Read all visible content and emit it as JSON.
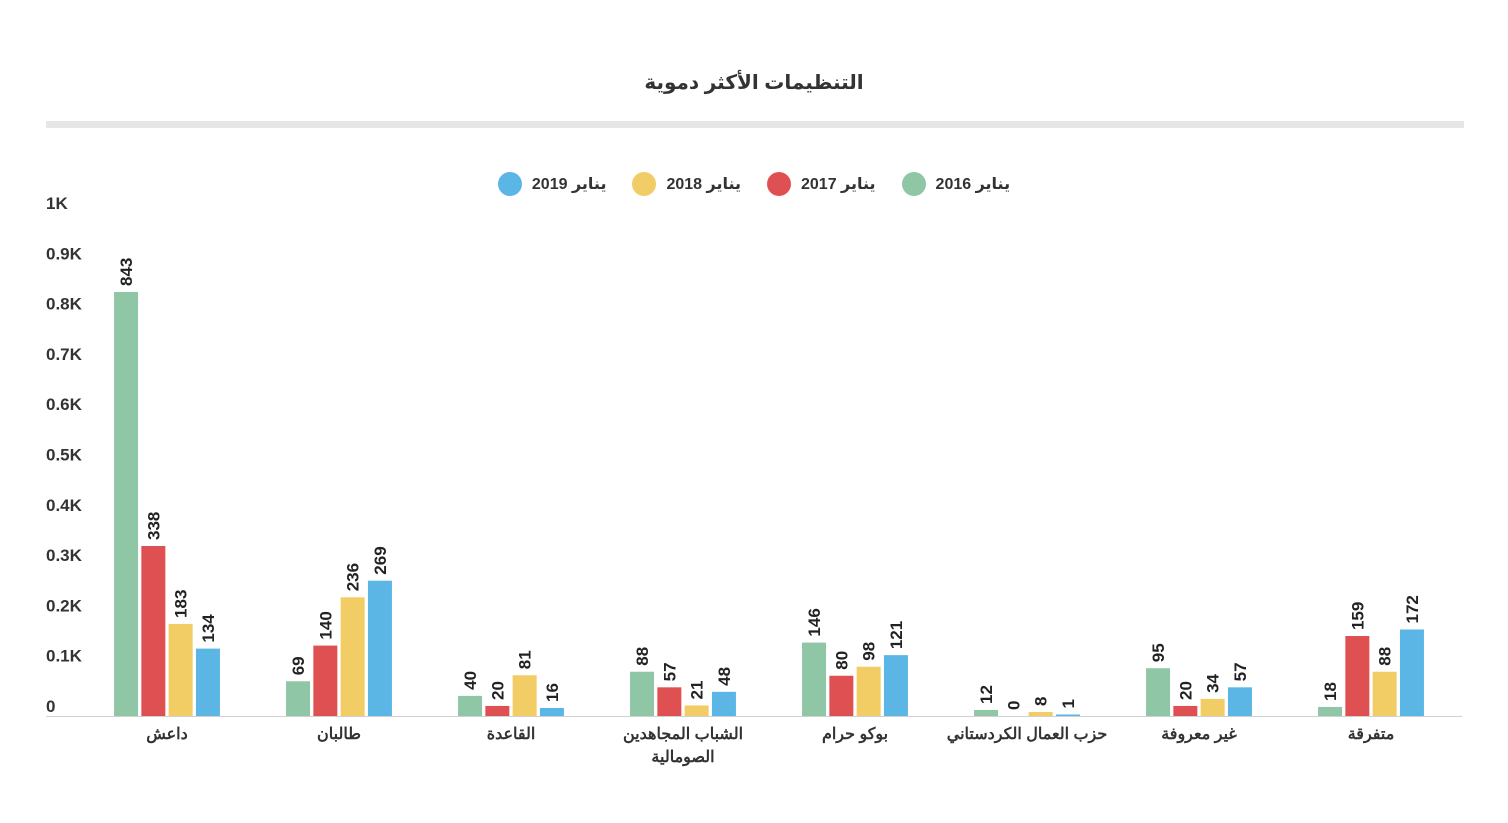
{
  "chart_data": {
    "type": "bar",
    "title": "التنظيمات الأكثر دموية",
    "categories": [
      "داعش",
      "طالبان",
      "القاعدة",
      "الشباب المجاهدين|الصومالية",
      "بوكو حرام",
      "حزب العمال الكردستاني",
      "غير معروفة",
      "متفرقة"
    ],
    "series": [
      {
        "name": "يناير 2016",
        "color": "#8fc6a5",
        "values": [
          843,
          69,
          40,
          88,
          146,
          12,
          95,
          18
        ]
      },
      {
        "name": "يناير 2017",
        "color": "#df5052",
        "values": [
          338,
          140,
          20,
          57,
          80,
          0,
          20,
          159
        ]
      },
      {
        "name": "يناير 2018",
        "color": "#f2cc64",
        "values": [
          183,
          236,
          81,
          21,
          98,
          8,
          34,
          88
        ]
      },
      {
        "name": "يناير 2019",
        "color": "#5bb6e6",
        "values": [
          134,
          269,
          16,
          48,
          121,
          1,
          57,
          172
        ]
      }
    ],
    "ylim": [
      0,
      1000
    ],
    "yticks": [
      {
        "value": 0,
        "label": "0"
      },
      {
        "value": 100,
        "label": "0.1K"
      },
      {
        "value": 200,
        "label": "0.2K"
      },
      {
        "value": 300,
        "label": "0.3K"
      },
      {
        "value": 400,
        "label": "0.4K"
      },
      {
        "value": 500,
        "label": "0.5K"
      },
      {
        "value": 600,
        "label": "0.6K"
      },
      {
        "value": 700,
        "label": "0.7K"
      },
      {
        "value": 800,
        "label": "0.8K"
      },
      {
        "value": 900,
        "label": "0.9K"
      },
      {
        "value": 1000,
        "label": "1K"
      }
    ],
    "grid": false,
    "legend_position": "top-center"
  }
}
